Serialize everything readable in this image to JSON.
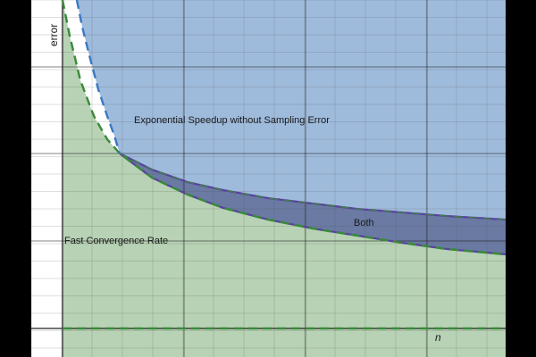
{
  "chart_data": {
    "type": "area",
    "title": "",
    "xlabel": "n",
    "ylabel": "error",
    "xlim": [
      0,
      10
    ],
    "ylim": [
      0,
      10
    ],
    "grid": true,
    "regions": [
      {
        "name": "Exponential Speedup without Sampling Error",
        "color": "#9fbbdc"
      },
      {
        "name": "Fast Convergence Rate",
        "color": "#b7d2b4"
      },
      {
        "name": "Both",
        "color": "#6a7aa3"
      }
    ],
    "series": [
      {
        "name": "",
        "style": "dashed",
        "color": "#3a78c4",
        "curve": "c / n^2",
        "x": [
          0.35,
          0.5,
          1,
          1.45
        ],
        "y": [
          12.6,
          6.2,
          1.55,
          0.73
        ]
      },
      {
        "name": "",
        "style": "dashed",
        "color": "#3a8a3a",
        "curve": "c / n",
        "x": [
          0.1,
          0.5,
          1,
          1.45,
          2,
          3,
          4,
          6,
          8,
          10
        ],
        "y": [
          10.3,
          2.06,
          1.03,
          0.71,
          0.52,
          0.34,
          0.26,
          0.17,
          0.13,
          0.1
        ]
      },
      {
        "name": "",
        "style": "solid",
        "color": "#5b3fa3",
        "curve": "upper boundary of Both",
        "x": [
          1.45,
          2,
          3,
          4,
          6,
          8,
          10
        ],
        "y": [
          0.71,
          0.6,
          0.52,
          0.48,
          0.44,
          0.41,
          0.39
        ]
      },
      {
        "name": "",
        "style": "solid",
        "color": "#5b3fa3",
        "curve": "lower boundary of Both",
        "x": [
          1.45,
          2,
          3,
          4,
          6,
          8,
          10
        ],
        "y": [
          0.71,
          0.52,
          0.34,
          0.26,
          0.17,
          0.13,
          0.1
        ]
      },
      {
        "name": "",
        "style": "dashed",
        "color": "#3a8a3a",
        "curve": "zero baseline",
        "x": [
          0,
          10
        ],
        "y": [
          0,
          0
        ]
      }
    ]
  }
}
